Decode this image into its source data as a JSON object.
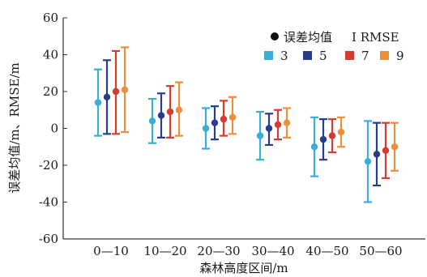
{
  "chart_data": {
    "type": "errorbar",
    "xlabel": "森林高度区间/m",
    "ylabel": "误差均值/m、RMSE/m",
    "ylim": [
      -60,
      60
    ],
    "yticks": [
      -60,
      -40,
      -20,
      0,
      20,
      40,
      60
    ],
    "categories": [
      "0—10",
      "10—20",
      "20—30",
      "30—40",
      "40—50",
      "50—60"
    ],
    "legend": {
      "mean_label": "误差均值",
      "rmse_label": "I RMSE",
      "placement": "top-right"
    },
    "series": [
      {
        "name": "3",
        "color": "#3aaed8",
        "mean": [
          14,
          4,
          0,
          -4,
          -10,
          -18
        ],
        "upper": [
          32,
          16,
          11,
          9,
          6,
          4
        ],
        "lower": [
          -4,
          -8,
          -11,
          -17,
          -26,
          -40
        ]
      },
      {
        "name": "5",
        "color": "#283c8c",
        "mean": [
          17,
          7,
          3,
          0,
          -6,
          -14
        ],
        "upper": [
          37,
          19,
          12,
          8,
          5,
          3
        ],
        "lower": [
          -3,
          -5,
          -6,
          -9,
          -17,
          -31
        ]
      },
      {
        "name": "7",
        "color": "#d63a30",
        "mean": [
          20,
          9,
          5,
          2,
          -4,
          -12
        ],
        "upper": [
          42,
          23,
          15,
          10,
          5,
          3
        ],
        "lower": [
          -3,
          -5,
          -4,
          -6,
          -13,
          -27
        ]
      },
      {
        "name": "9",
        "color": "#ec8e3c",
        "mean": [
          21,
          10,
          6,
          3,
          -2,
          -10
        ],
        "upper": [
          44,
          25,
          17,
          11,
          6,
          3
        ],
        "lower": [
          -2,
          -4,
          -3,
          -5,
          -10,
          -23
        ]
      }
    ]
  }
}
